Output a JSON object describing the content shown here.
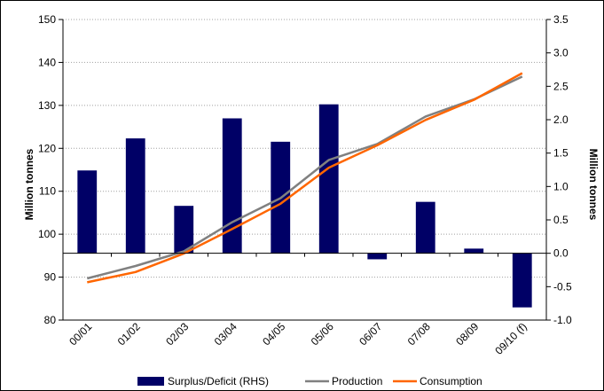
{
  "chart_data": {
    "type": "bar",
    "categories": [
      "00/01",
      "01/02",
      "02/03",
      "03/04",
      "04/05",
      "05/06",
      "06/07",
      "07/08",
      "08/09",
      "09/10 (f)"
    ],
    "ylabel": "Million tonnes",
    "y2label": "Million tonnes",
    "ylim": [
      80,
      150
    ],
    "yticks": [
      80,
      90,
      100,
      110,
      120,
      130,
      140,
      150
    ],
    "y2lim": [
      -1.0,
      3.5
    ],
    "y2ticks": [
      "-1.0",
      "-0.5",
      "0.0",
      "0.5",
      "1.0",
      "1.5",
      "2.0",
      "2.5",
      "3.0",
      "3.5"
    ],
    "grid": "horizontal dotted",
    "legend_position": "bottom",
    "series": [
      {
        "name": "Surplus/Deficit (RHS)",
        "type": "bar",
        "axis": "right",
        "color": "#000066",
        "values": [
          1.24,
          1.72,
          0.71,
          2.02,
          1.67,
          2.23,
          -0.09,
          0.77,
          0.07,
          -0.81
        ]
      },
      {
        "name": "Production",
        "type": "line",
        "axis": "left",
        "color": "#808080",
        "values": [
          89.7,
          92.6,
          96.0,
          102.8,
          108.4,
          117.3,
          121.0,
          127.4,
          131.4,
          136.7
        ]
      },
      {
        "name": "Consumption",
        "type": "line",
        "axis": "left",
        "color": "#ff6600",
        "values": [
          88.8,
          91.2,
          95.5,
          101.2,
          107.1,
          115.5,
          120.7,
          126.6,
          131.3,
          137.5
        ]
      }
    ]
  }
}
